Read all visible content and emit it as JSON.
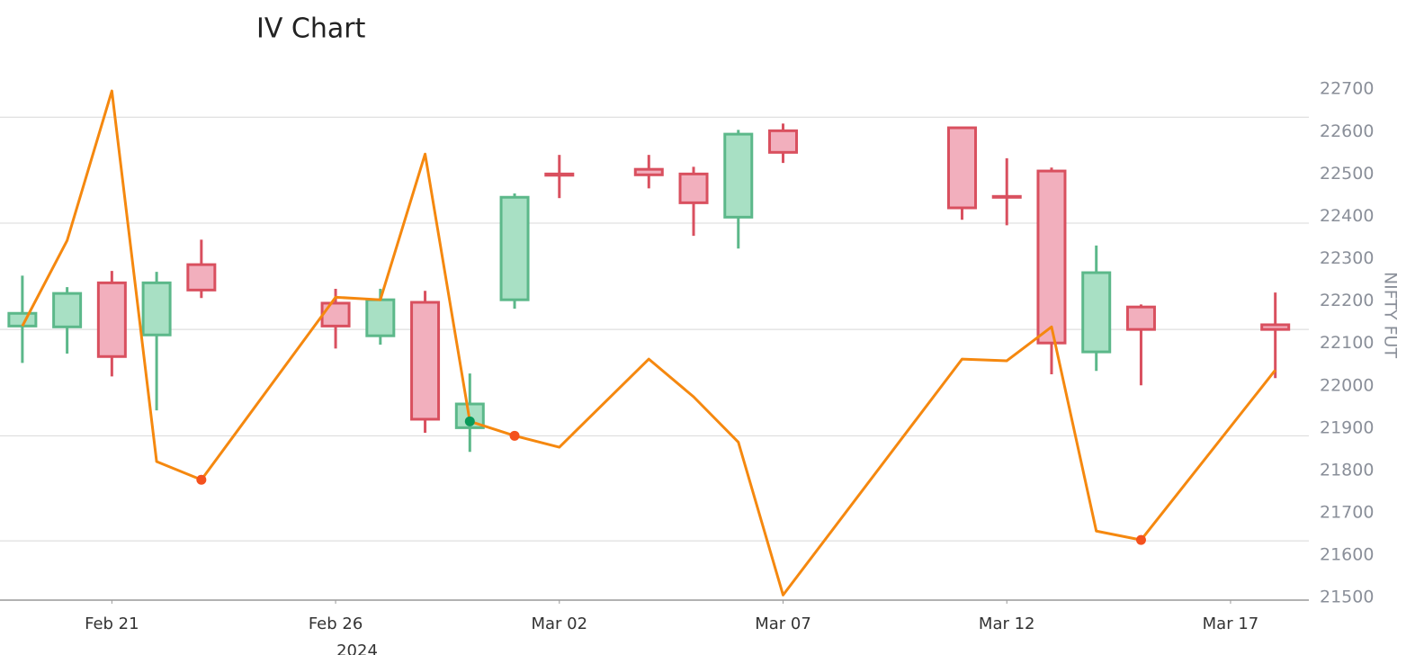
{
  "chart_data": {
    "type": "candlestick",
    "title": "IV Chart",
    "y_label": "NIFTY FUT",
    "x_year_label": "2024",
    "x": [
      "2024-02-19",
      "2024-02-20",
      "2024-02-21",
      "2024-02-22",
      "2024-02-23",
      "2024-02-26",
      "2024-02-27",
      "2024-02-28",
      "2024-02-29",
      "2024-03-01",
      "2024-03-02",
      "2024-03-04",
      "2024-03-05",
      "2024-03-06",
      "2024-03-07",
      "2024-03-11",
      "2024-03-12",
      "2024-03-13",
      "2024-03-14",
      "2024-03-15",
      "2024-03-18"
    ],
    "open": [
      22141,
      22139,
      22243,
      22120,
      22286,
      22195,
      22118,
      22197,
      21901,
      22203,
      22500,
      22511,
      22500,
      22398,
      22602,
      22609,
      22447,
      22507,
      22080,
      22186,
      22144
    ],
    "high": [
      22260,
      22233,
      22271,
      22269,
      22345,
      22229,
      22229,
      22224,
      22029,
      22454,
      22545,
      22545,
      22517,
      22604,
      22619,
      22609,
      22537,
      22515,
      22331,
      22192,
      22220
    ],
    "low": [
      22054,
      22076,
      22022,
      21942,
      22207,
      22088,
      22097,
      21889,
      21844,
      22182,
      22443,
      22466,
      22354,
      22324,
      22526,
      22392,
      22379,
      22027,
      22035,
      22001,
      22018
    ],
    "close": [
      22171,
      22218,
      22069,
      22243,
      22226,
      22141,
      22203,
      21921,
      21957,
      22445,
      22497,
      22498,
      22432,
      22594,
      22551,
      22420,
      22445,
      22101,
      22267,
      22133,
      22133
    ],
    "up_color": {
      "fill": "#a8e0c4",
      "stroke": "#5cb88a"
    },
    "down_color": {
      "fill": "#f2afbd",
      "stroke": "#d9505f"
    },
    "overlay": {
      "type": "line",
      "color": "#f5880f",
      "values": [
        22141,
        22343,
        22696,
        21821,
        21778,
        22209,
        22203,
        22547,
        21916,
        21882,
        21855,
        22063,
        21974,
        21867,
        21506,
        22063,
        22059,
        22139,
        21657,
        21636,
        22037
      ],
      "marker_colors": [
        null,
        null,
        null,
        null,
        "#f4511e",
        null,
        null,
        null,
        "#0a9a5a",
        "#f4511e",
        null,
        null,
        null,
        null,
        null,
        null,
        null,
        null,
        null,
        "#f4511e",
        null
      ]
    },
    "xlim": [
      "2024-02-18T12:00",
      "2024-03-18T18:00"
    ],
    "xticks": [
      {
        "value": "2024-02-21",
        "label": "Feb 21"
      },
      {
        "value": "2024-02-26",
        "label": "Feb 26"
      },
      {
        "value": "2024-03-02",
        "label": "Mar 02"
      },
      {
        "value": "2024-03-07",
        "label": "Mar 07"
      },
      {
        "value": "2024-03-12",
        "label": "Mar 12"
      },
      {
        "value": "2024-03-17",
        "label": "Mar 17"
      }
    ],
    "ylim": [
      21494,
      22762
    ],
    "yticks": [
      21500,
      21600,
      21700,
      21800,
      21900,
      22000,
      22100,
      22200,
      22300,
      22400,
      22500,
      22600,
      22700
    ],
    "grid_lines": [
      22634,
      22384,
      22133,
      21882,
      21634
    ]
  }
}
